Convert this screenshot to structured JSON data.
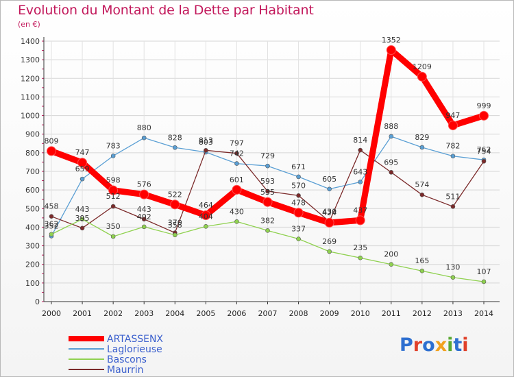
{
  "title": "Evolution du Montant de la Dette par Habitant",
  "subtitle": "(en €)",
  "brand": "Proxiti",
  "chart_data": {
    "type": "line",
    "title": "Evolution du Montant de la Dette par Habitant",
    "ylabel": "(en €)",
    "xlabel": "",
    "ylim": [
      0,
      1400
    ],
    "yticks": [
      0,
      100,
      200,
      300,
      400,
      500,
      600,
      700,
      800,
      900,
      1000,
      1100,
      1200,
      1300,
      1400
    ],
    "grid": true,
    "legend": "bottom-left",
    "x": [
      "2000",
      "2001",
      "2002",
      "2003",
      "2004",
      "2005",
      "2006",
      "2007",
      "2008",
      "2009",
      "2010",
      "2011",
      "2012",
      "2013",
      "2014"
    ],
    "series": [
      {
        "name": "ARTASSENX",
        "color": "#ff0000",
        "values": [
          809,
          747,
          598,
          576,
          522,
          464,
          601,
          535,
          478,
          424,
          437,
          1352,
          1209,
          947,
          999
        ]
      },
      {
        "name": "Laglorieuse",
        "color": "#5a9fd4",
        "values": [
          352,
          659,
          783,
          880,
          828,
          803,
          742,
          729,
          671,
          605,
          643,
          888,
          829,
          782,
          762
        ]
      },
      {
        "name": "Bascons",
        "color": "#8fd14f",
        "values": [
          362,
          443,
          350,
          402,
          358,
          404,
          430,
          382,
          337,
          269,
          235,
          200,
          165,
          130,
          107
        ]
      },
      {
        "name": "Maurrin",
        "color": "#7b2a2a",
        "values": [
          458,
          395,
          512,
          443,
          370,
          813,
          797,
          593,
          570,
          430,
          814,
          695,
          574,
          511,
          754
        ]
      }
    ]
  }
}
